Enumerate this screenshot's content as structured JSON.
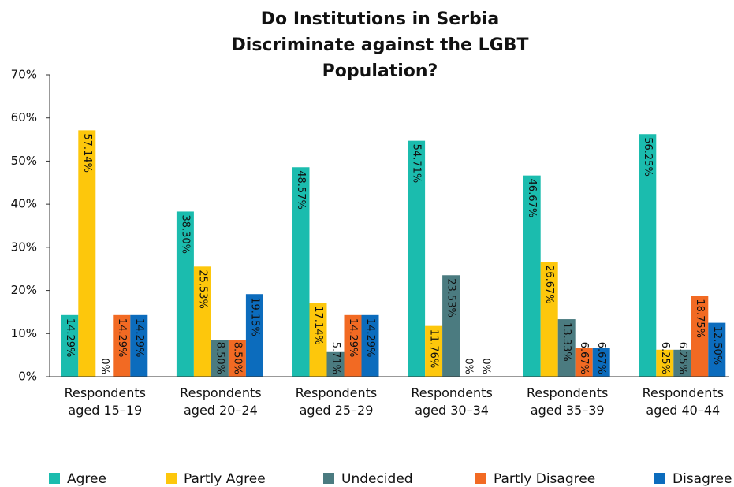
{
  "chart_data": {
    "type": "bar",
    "title": "Do Institutions in Serbia Discriminate against the LGBT Population?",
    "categories": [
      "Respondents aged 15–19",
      "Respondents aged 20–24",
      "Respondents aged 25–29",
      "Respondents aged 30–34",
      "Respondents aged 35–39",
      "Respondents aged 40–44"
    ],
    "series": [
      {
        "name": "Agree",
        "color": "#1bbcae",
        "values": [
          14.29,
          38.3,
          48.57,
          54.71,
          46.67,
          56.25
        ],
        "value_labels": [
          "14.29%",
          "38.30%",
          "48.57%",
          "54.71%",
          "46.67%",
          "56.25%"
        ]
      },
      {
        "name": "Partly Agree",
        "color": "#fdc70c",
        "values": [
          57.14,
          25.53,
          17.14,
          11.76,
          26.67,
          6.25
        ],
        "value_labels": [
          "57.14%",
          "25.53%",
          "17.14%",
          "11.76%",
          "26.67%",
          "6.25%"
        ]
      },
      {
        "name": "Undecided",
        "color": "#4b7b80",
        "values": [
          0,
          8.5,
          5.71,
          23.53,
          13.33,
          6.25
        ],
        "value_labels": [
          "0%",
          "8.50%",
          "5.71%",
          "23.53%",
          "13.33%",
          "6.25%"
        ]
      },
      {
        "name": "Partly Disagree",
        "color": "#f26a23",
        "values": [
          14.29,
          8.5,
          14.29,
          0,
          6.67,
          18.75
        ],
        "value_labels": [
          "14.29%",
          "8.50%",
          "14.29%",
          "0%",
          "6.67%",
          "18.75%"
        ]
      },
      {
        "name": "Disagree",
        "color": "#0c6cbd",
        "values": [
          14.29,
          19.15,
          14.29,
          0,
          6.67,
          12.5
        ],
        "value_labels": [
          "14.29%",
          "19.15%",
          "14.29%",
          "0%",
          "6.67%",
          "12.50%"
        ]
      }
    ],
    "ylim": [
      0,
      70
    ],
    "yticks": [
      {
        "value": 0,
        "label": "0%"
      },
      {
        "value": 10,
        "label": "10%"
      },
      {
        "value": 20,
        "label": "20%"
      },
      {
        "value": 30,
        "label": "30%"
      },
      {
        "value": 40,
        "label": "40%"
      },
      {
        "value": 50,
        "label": "50%"
      },
      {
        "value": 60,
        "label": "60%"
      },
      {
        "value": 70,
        "label": "70%"
      }
    ],
    "grid": false,
    "legend": "bottom"
  }
}
